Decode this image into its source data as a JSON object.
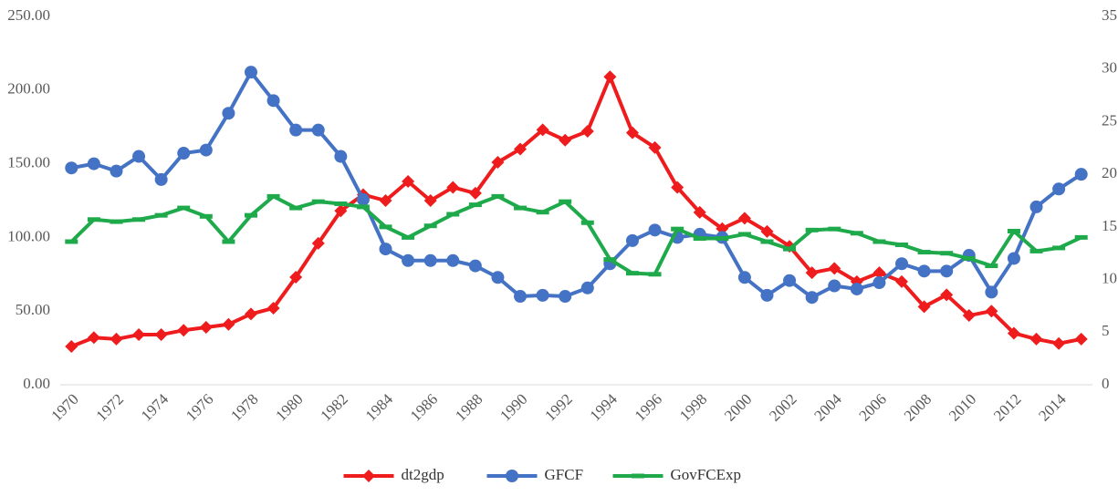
{
  "chart_data": {
    "type": "line",
    "x": [
      1970,
      1971,
      1972,
      1973,
      1974,
      1975,
      1976,
      1977,
      1978,
      1979,
      1980,
      1981,
      1982,
      1983,
      1984,
      1985,
      1986,
      1987,
      1988,
      1989,
      1990,
      1991,
      1992,
      1993,
      1994,
      1995,
      1996,
      1997,
      1998,
      1999,
      2000,
      2001,
      2002,
      2003,
      2004,
      2005,
      2006,
      2007,
      2008,
      2009,
      2010,
      2011,
      2012,
      2013,
      2014,
      2015
    ],
    "xlim": [
      1969.5,
      2015.5
    ],
    "xticks": [
      1970,
      1972,
      1974,
      1976,
      1978,
      1980,
      1982,
      1984,
      1986,
      1988,
      1990,
      1992,
      1994,
      1996,
      1998,
      2000,
      2002,
      2004,
      2006,
      2008,
      2010,
      2012,
      2014
    ],
    "ylim": [
      0,
      250
    ],
    "yticks": [
      {
        "value": 0,
        "label": "0.00"
      },
      {
        "value": 50,
        "label": "50.00"
      },
      {
        "value": 100,
        "label": "100.00"
      },
      {
        "value": 150,
        "label": "150.00"
      },
      {
        "value": 200,
        "label": "200.00"
      },
      {
        "value": 250,
        "label": "250.00"
      }
    ],
    "y2lim": [
      0,
      35
    ],
    "y2ticks": [
      0,
      5,
      10,
      15,
      20,
      25,
      30,
      35
    ],
    "legend": "bottom",
    "series": [
      {
        "name": "dt2gdp",
        "color": "#ee1c1c",
        "marker": "diamond",
        "values": [
          26,
          32,
          31,
          34,
          34,
          37,
          39,
          41,
          48,
          52,
          73,
          96,
          118,
          129,
          125,
          138,
          125,
          134,
          130,
          151,
          160,
          173,
          166,
          172,
          209,
          171,
          161,
          134,
          117,
          106,
          113,
          104,
          94,
          76,
          79,
          70,
          76,
          70,
          53,
          61,
          47,
          50,
          35,
          31,
          28,
          31
        ]
      },
      {
        "name": "GFCF",
        "color": "#4472c4",
        "marker": "circle",
        "axis": "y2",
        "values": [
          20.6,
          21.0,
          20.3,
          21.7,
          19.5,
          22.0,
          22.3,
          25.8,
          29.7,
          27.0,
          24.2,
          24.2,
          21.7,
          17.6,
          12.9,
          11.8,
          11.8,
          11.8,
          11.3,
          10.2,
          8.4,
          8.5,
          8.4,
          9.2,
          11.5,
          13.7,
          14.7,
          14.0,
          14.3,
          14.0,
          10.2,
          8.5,
          9.9,
          8.3,
          9.4,
          9.1,
          9.7,
          11.5,
          10.8,
          10.8,
          12.3,
          8.8,
          12.0,
          16.9,
          18.6,
          20.0
        ]
      },
      {
        "name": "GovFCExp",
        "color": "#1eaa4b",
        "marker": "dash",
        "axis": "y2",
        "values": [
          13.6,
          15.7,
          15.5,
          15.7,
          16.1,
          16.8,
          16.0,
          13.6,
          16.1,
          17.9,
          16.8,
          17.4,
          17.2,
          16.9,
          15.0,
          14.0,
          15.1,
          16.2,
          17.1,
          17.9,
          16.8,
          16.4,
          17.4,
          15.4,
          11.9,
          10.6,
          10.5,
          14.8,
          13.9,
          13.9,
          14.3,
          13.6,
          12.9,
          14.7,
          14.8,
          14.4,
          13.6,
          13.3,
          12.6,
          12.5,
          12.0,
          11.3,
          14.6,
          12.7,
          13.0,
          14.0
        ]
      }
    ]
  }
}
